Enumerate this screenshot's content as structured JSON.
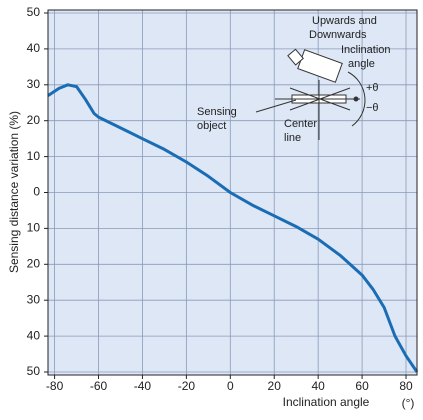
{
  "chart_data": {
    "type": "line",
    "ylabel": "Sensing distance variation (%)",
    "xlabel": "Inclination angle",
    "xunit": "(°)",
    "annotations": [
      "Upwards and",
      "Downwards",
      "Inclination",
      "angle",
      "+θ",
      "−θ",
      "Sensing",
      "object",
      "Center",
      "line"
    ],
    "xlim": [
      -83,
      85
    ],
    "ylim": [
      -50,
      50
    ],
    "xticks": [
      -80,
      -60,
      -40,
      -20,
      0,
      20,
      40,
      60,
      80
    ],
    "yticks": [
      {
        "value": 50,
        "label": "50"
      },
      {
        "value": 40,
        "label": "40"
      },
      {
        "value": 30,
        "label": "30"
      },
      {
        "value": 20,
        "label": "20"
      },
      {
        "value": 10,
        "label": "10"
      },
      0,
      {
        "value": -10,
        "label": "10"
      },
      {
        "value": -20,
        "label": "20"
      },
      {
        "value": -30,
        "label": "30"
      },
      {
        "value": -40,
        "label": "40"
      },
      {
        "value": -50,
        "label": "50"
      }
    ],
    "grid": true,
    "series": [
      {
        "color": "#1a6db5",
        "x": [
          -83,
          -78,
          -74,
          -70,
          -66,
          -62,
          -60,
          -50,
          -40,
          -30,
          -20,
          -10,
          0,
          10,
          20,
          30,
          40,
          50,
          60,
          65,
          70,
          75,
          80,
          85
        ],
        "values": [
          27,
          29,
          30,
          29.5,
          26,
          22,
          21,
          18,
          15,
          12,
          8.5,
          4.5,
          0,
          -3.5,
          -6.5,
          -9.5,
          -13,
          -17.5,
          -23,
          -27,
          -32,
          -40,
          -45.5,
          -50
        ]
      }
    ]
  }
}
